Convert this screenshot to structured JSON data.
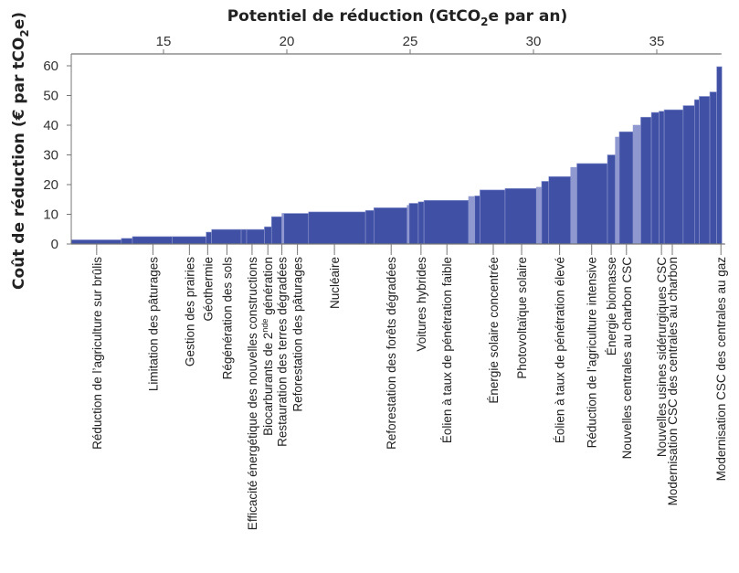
{
  "chart_data": {
    "type": "bar",
    "subtype": "marginal-cost-curve (variable-width bars)",
    "xlabel": {
      "pre": "Potentiel de réduction (GtCO",
      "sub": "2",
      "post": "e par an)"
    },
    "ylabel": {
      "pre": "Coût de réduction (€ par tCO",
      "sub": "2",
      "post": "e)"
    },
    "xlim": [
      11.26,
      37.64
    ],
    "ylim": [
      0,
      62
    ],
    "xticks": [
      15,
      20,
      25,
      30,
      35
    ],
    "yticks": [
      0,
      10,
      20,
      30,
      40,
      50,
      60
    ],
    "x_axis_position": "top",
    "grid": false,
    "colors": {
      "bar": "#3f50a5",
      "bar_light": "#8f98cf",
      "axis": "#777777"
    },
    "bars": [
      {
        "x0": 11.26,
        "x1": 13.29,
        "cost": 1.4
      },
      {
        "x0": 13.29,
        "x1": 13.74,
        "cost": 1.9
      },
      {
        "x0": 13.74,
        "x1": 15.35,
        "cost": 2.5
      },
      {
        "x0": 15.35,
        "x1": 16.73,
        "cost": 2.5
      },
      {
        "x0": 16.73,
        "x1": 16.95,
        "cost": 4.0
      },
      {
        "x0": 16.95,
        "x1": 18.15,
        "cost": 4.9
      },
      {
        "x0": 18.15,
        "x1": 18.37,
        "cost": 4.9
      },
      {
        "x0": 18.37,
        "x1": 19.09,
        "cost": 4.9
      },
      {
        "x0": 19.09,
        "x1": 19.38,
        "cost": 5.8
      },
      {
        "x0": 19.38,
        "x1": 19.8,
        "cost": 9.2
      },
      {
        "x0": 19.8,
        "x1": 19.88,
        "cost": 10.3,
        "light": true
      },
      {
        "x0": 19.88,
        "x1": 20.88,
        "cost": 10.3
      },
      {
        "x0": 20.88,
        "x1": 23.19,
        "cost": 10.8
      },
      {
        "x0": 23.19,
        "x1": 23.53,
        "cost": 11.3
      },
      {
        "x0": 23.53,
        "x1": 24.88,
        "cost": 12.2
      },
      {
        "x0": 24.88,
        "x1": 24.96,
        "cost": 13.0,
        "light": true
      },
      {
        "x0": 24.96,
        "x1": 25.33,
        "cost": 13.7
      },
      {
        "x0": 25.33,
        "x1": 25.56,
        "cost": 14.2
      },
      {
        "x0": 25.56,
        "x1": 27.37,
        "cost": 14.7
      },
      {
        "x0": 27.37,
        "x1": 27.62,
        "cost": 16.0,
        "light": true
      },
      {
        "x0": 27.62,
        "x1": 27.83,
        "cost": 16.2
      },
      {
        "x0": 27.83,
        "x1": 28.85,
        "cost": 18.2
      },
      {
        "x0": 28.85,
        "x1": 30.12,
        "cost": 18.7
      },
      {
        "x0": 30.12,
        "x1": 30.33,
        "cost": 19.1,
        "light": true
      },
      {
        "x0": 30.33,
        "x1": 30.62,
        "cost": 21.1
      },
      {
        "x0": 30.62,
        "x1": 31.51,
        "cost": 22.7
      },
      {
        "x0": 31.51,
        "x1": 31.76,
        "cost": 25.8,
        "light": true
      },
      {
        "x0": 31.76,
        "x1": 33.0,
        "cost": 27.1
      },
      {
        "x0": 33.0,
        "x1": 33.32,
        "cost": 30.0
      },
      {
        "x0": 33.32,
        "x1": 33.48,
        "cost": 36.0,
        "light": true
      },
      {
        "x0": 33.48,
        "x1": 34.04,
        "cost": 37.8
      },
      {
        "x0": 34.04,
        "x1": 34.35,
        "cost": 40.0,
        "light": true
      },
      {
        "x0": 34.35,
        "x1": 34.78,
        "cost": 42.7
      },
      {
        "x0": 34.78,
        "x1": 35.09,
        "cost": 44.3
      },
      {
        "x0": 35.09,
        "x1": 35.3,
        "cost": 44.7
      },
      {
        "x0": 35.3,
        "x1": 36.07,
        "cost": 45.2
      },
      {
        "x0": 36.07,
        "x1": 36.53,
        "cost": 46.6
      },
      {
        "x0": 36.53,
        "x1": 36.72,
        "cost": 48.6
      },
      {
        "x0": 36.72,
        "x1": 37.15,
        "cost": 49.7
      },
      {
        "x0": 37.15,
        "x1": 37.43,
        "cost": 51.2
      },
      {
        "x0": 37.43,
        "x1": 37.64,
        "cost": 59.7
      }
    ],
    "annotations": [
      {
        "x": 12.29,
        "text": "Réduction de l’agriculture sur brûlis"
      },
      {
        "x": 14.57,
        "text": "Limitation des pâturages"
      },
      {
        "x": 16.05,
        "text": "Gestion des prairies"
      },
      {
        "x": 16.79,
        "text": "Géothermie"
      },
      {
        "x": 17.57,
        "text": "Régénération des sols"
      },
      {
        "x": 18.59,
        "text": "Efficacité énergétique des nouvelles constructions"
      },
      {
        "x": 19.23,
        "text": "Biocarburants de 2",
        "sup": "nde",
        "post": " génération"
      },
      {
        "x": 19.8,
        "text": "Restauration des terres dégradées"
      },
      {
        "x": 20.43,
        "text": "Reforestation des pâturages"
      },
      {
        "x": 21.93,
        "text": "Nucléaire"
      },
      {
        "x": 24.23,
        "text": "Reforestation des forêts dégradées"
      },
      {
        "x": 25.44,
        "text": "Voitures hybrides"
      },
      {
        "x": 26.49,
        "text": "Éolien à taux de pénétration faible"
      },
      {
        "x": 28.37,
        "text": "Énergie solaire concentrée"
      },
      {
        "x": 29.52,
        "text": "Photovoltaïque solaire"
      },
      {
        "x": 31.06,
        "text": "Éolien à taux de pénétration élevé"
      },
      {
        "x": 32.36,
        "text": "Réduction de l’agriculture intensive"
      },
      {
        "x": 33.15,
        "text": "Énergie biomasse"
      },
      {
        "x": 33.77,
        "text": "Nouvelles centrales au charbon CSC"
      },
      {
        "x": 35.19,
        "text": "Nouvelles usines sidérurgiques CSC"
      },
      {
        "x": 35.63,
        "text": "Modernisation CSC des centrales au charbon"
      },
      {
        "x": 37.6,
        "text": "Modernisation CSC des centrales au gaz"
      }
    ]
  }
}
